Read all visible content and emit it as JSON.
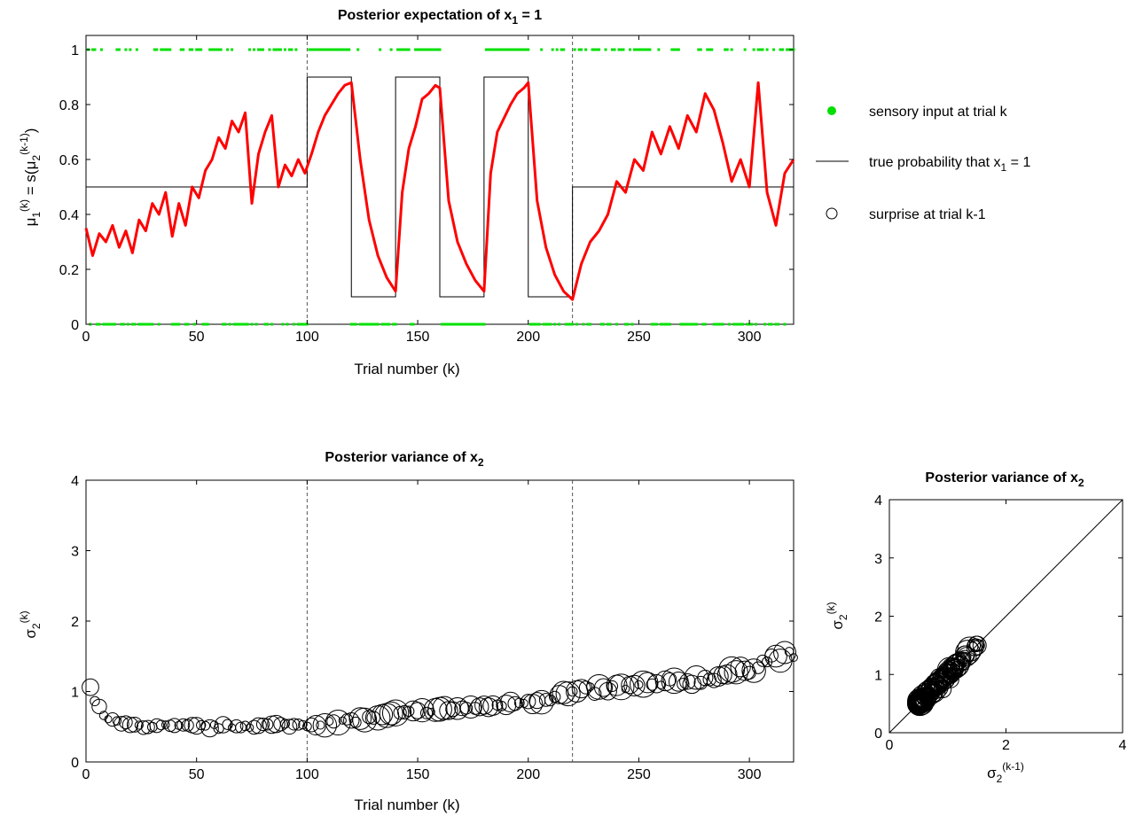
{
  "chart_data": [
    {
      "type": "line",
      "title": "Posterior expectation of x",
      "title_sub": "1",
      "title_tail": " = 1",
      "xlabel": "Trial number (k)",
      "ylabel": {
        "base": "μ",
        "sub": "1",
        "sup": "(k)",
        "mid": " = s(μ",
        "sub2": "2",
        "sup2": "(k-1)",
        "end": ")"
      },
      "xlim": [
        0,
        320
      ],
      "ylim": [
        0,
        1
      ],
      "xticks": [
        "0",
        "50",
        "100",
        "150",
        "200",
        "250",
        "300"
      ],
      "xtick_values": [
        0,
        50,
        100,
        150,
        200,
        250,
        300
      ],
      "yticks": [
        "0",
        "0.2",
        "0.4",
        "0.6",
        "0.8",
        "1"
      ],
      "ytick_values": [
        0,
        0.2,
        0.4,
        0.6,
        0.8,
        1
      ],
      "vlines": [
        100,
        220
      ],
      "true_probability": {
        "x": [
          0,
          100,
          100,
          120,
          120,
          140,
          140,
          160,
          160,
          180,
          180,
          200,
          200,
          220,
          220,
          320
        ],
        "y": [
          0.5,
          0.5,
          0.9,
          0.9,
          0.1,
          0.1,
          0.9,
          0.9,
          0.1,
          0.1,
          0.9,
          0.9,
          0.1,
          0.1,
          0.5,
          0.5
        ]
      },
      "posterior_mean": {
        "x": [
          0,
          3,
          6,
          9,
          12,
          15,
          18,
          21,
          24,
          27,
          30,
          33,
          36,
          39,
          42,
          45,
          48,
          51,
          54,
          57,
          60,
          63,
          66,
          69,
          72,
          75,
          78,
          81,
          84,
          87,
          90,
          93,
          96,
          99,
          102,
          105,
          108,
          111,
          114,
          117,
          120,
          124,
          128,
          132,
          136,
          140,
          143,
          146,
          149,
          152,
          155,
          158,
          160,
          164,
          168,
          172,
          176,
          180,
          183,
          186,
          189,
          192,
          195,
          198,
          200,
          204,
          208,
          212,
          216,
          220,
          224,
          228,
          232,
          236,
          240,
          244,
          248,
          252,
          256,
          260,
          264,
          268,
          272,
          276,
          280,
          284,
          288,
          292,
          296,
          300,
          304,
          308,
          312,
          316,
          320
        ],
        "y": [
          0.35,
          0.25,
          0.33,
          0.3,
          0.36,
          0.28,
          0.34,
          0.26,
          0.38,
          0.34,
          0.44,
          0.4,
          0.48,
          0.32,
          0.44,
          0.36,
          0.5,
          0.46,
          0.56,
          0.6,
          0.68,
          0.64,
          0.74,
          0.7,
          0.77,
          0.44,
          0.62,
          0.7,
          0.76,
          0.5,
          0.58,
          0.54,
          0.6,
          0.55,
          0.62,
          0.7,
          0.76,
          0.8,
          0.84,
          0.87,
          0.88,
          0.6,
          0.38,
          0.25,
          0.17,
          0.12,
          0.48,
          0.64,
          0.72,
          0.82,
          0.84,
          0.87,
          0.86,
          0.45,
          0.3,
          0.22,
          0.16,
          0.12,
          0.55,
          0.7,
          0.75,
          0.8,
          0.84,
          0.86,
          0.88,
          0.45,
          0.28,
          0.18,
          0.12,
          0.09,
          0.22,
          0.3,
          0.34,
          0.4,
          0.52,
          0.48,
          0.6,
          0.56,
          0.7,
          0.62,
          0.72,
          0.64,
          0.76,
          0.7,
          0.84,
          0.78,
          0.66,
          0.52,
          0.6,
          0.5,
          0.88,
          0.48,
          0.36,
          0.55,
          0.6
        ],
        "color": "#ff0000"
      },
      "sensory_input_color": "#00e000",
      "legend": [
        {
          "kind": "dot",
          "label": "sensory input at trial k"
        },
        {
          "kind": "line",
          "label": "true probability that x",
          "sub": "1",
          "tail": " = 1"
        },
        {
          "kind": "circle",
          "label": "surprise at trial k-1"
        }
      ]
    },
    {
      "type": "scatter",
      "title": "Posterior variance of x",
      "title_sub": "2",
      "xlabel": "Trial number (k)",
      "ylabel": {
        "base": "σ",
        "sub": "2",
        "sup": "(k)"
      },
      "xlim": [
        0,
        320
      ],
      "ylim": [
        0,
        4
      ],
      "xticks": [
        "0",
        "50",
        "100",
        "150",
        "200",
        "250",
        "300"
      ],
      "xtick_values": [
        0,
        50,
        100,
        150,
        200,
        250,
        300
      ],
      "yticks": [
        "0",
        "1",
        "2",
        "3",
        "4"
      ],
      "ytick_values": [
        0,
        1,
        2,
        3,
        4
      ],
      "vlines": [
        100,
        220
      ],
      "trend": {
        "x": [
          2,
          5,
          10,
          20,
          40,
          60,
          80,
          100,
          120,
          140,
          160,
          180,
          200,
          220,
          240,
          260,
          280,
          300,
          310,
          320
        ],
        "y": [
          1.05,
          0.8,
          0.6,
          0.52,
          0.5,
          0.5,
          0.52,
          0.53,
          0.58,
          0.68,
          0.74,
          0.78,
          0.86,
          0.98,
          1.05,
          1.1,
          1.18,
          1.32,
          1.48,
          1.52
        ]
      }
    },
    {
      "type": "scatter",
      "title": "Posterior variance of x",
      "title_sub": "2",
      "xlabel": {
        "base": "σ",
        "sub": "2",
        "sup": "(k-1)"
      },
      "ylabel": {
        "base": "σ",
        "sub": "2",
        "sup": "(k)"
      },
      "xlim": [
        0,
        4
      ],
      "ylim": [
        0,
        4
      ],
      "xticks": [
        "0",
        "2",
        "4"
      ],
      "xtick_values": [
        0,
        2,
        4
      ],
      "yticks": [
        "0",
        "1",
        "2",
        "3",
        "4"
      ],
      "ytick_values": [
        0,
        1,
        2,
        3,
        4
      ],
      "identity_line": true
    }
  ]
}
